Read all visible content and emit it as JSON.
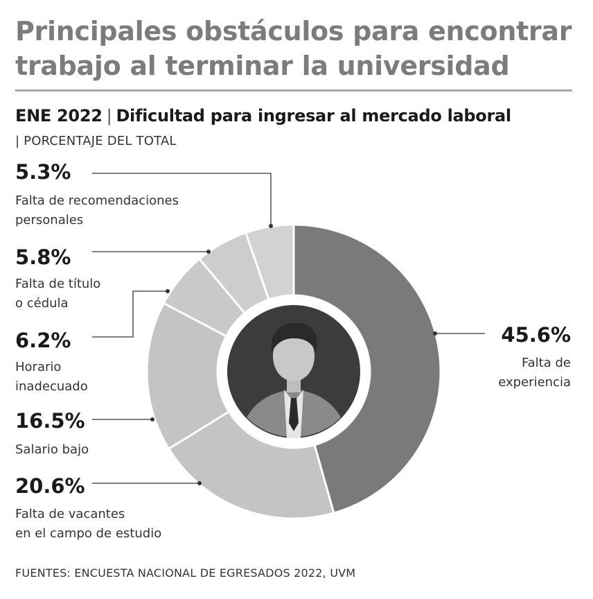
{
  "header": {
    "title": "Principales obstáculos para encontrar trabajo al terminar la universidad",
    "subtitle_prefix": "ENE 2022",
    "subtitle_separator": "|",
    "subtitle_main": "Dificultad para ingresar al mercado laboral",
    "unit_label": "| PORCENTAJE DEL TOTAL"
  },
  "chart_data": {
    "type": "pie",
    "title": "Dificultad para ingresar al mercado laboral",
    "unit": "PORCENTAJE DEL TOTAL",
    "categories": [
      "Falta de experiencia",
      "Falta de vacantes en el campo de estudio",
      "Salario bajo",
      "Horario inadecuado",
      "Falta de título o cédula",
      "Falta de recomendaciones personales"
    ],
    "values": [
      45.6,
      20.6,
      16.5,
      6.2,
      5.8,
      5.3
    ],
    "value_labels": [
      "45.6%",
      "20.6%",
      "16.5%",
      "6.2%",
      "5.8%",
      "5.3%"
    ],
    "label_lines": [
      [
        "Falta de",
        "experiencia"
      ],
      [
        "Falta de vacantes",
        "en el campo de estudio"
      ],
      [
        "Salario bajo"
      ],
      [
        "Horario",
        "inadecuado"
      ],
      [
        "Falta de título",
        "o cédula"
      ],
      [
        "Falta de recomendaciones",
        "personales"
      ]
    ],
    "colors": [
      "#7a7a7a",
      "#c4c4c4",
      "#c4c4c4",
      "#c9c9c9",
      "#cdcdcd",
      "#d2d2d2"
    ],
    "center_icon": "person-in-suit-icon"
  },
  "footer": {
    "source": "FUENTES: ENCUESTA NACIONAL DE EGRESADOS 2022, UVM"
  }
}
